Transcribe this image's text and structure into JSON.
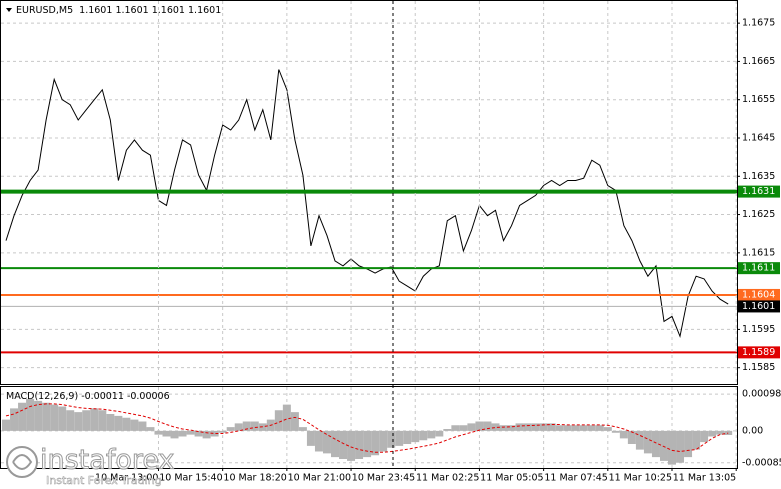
{
  "chart_data": [
    {
      "type": "line",
      "symbol": "EURUSD,M5",
      "ohlc": [
        1.1601,
        1.1601,
        1.1601,
        1.1601
      ],
      "ylim": [
        1.1581,
        1.168
      ],
      "xlim": [
        -0.75,
        91.1
      ],
      "yticks": [
        1.1675,
        1.1665,
        1.1655,
        1.1645,
        1.1635,
        1.1625,
        1.1615,
        1.1595,
        1.1585
      ],
      "grid": true,
      "series": [
        {
          "color": "#000000",
          "values": [
            1.16182,
            1.16247,
            1.163,
            1.16339,
            1.16366,
            1.16497,
            1.16603,
            1.1655,
            1.16537,
            1.16497,
            1.16524,
            1.1655,
            1.16576,
            1.16497,
            1.16339,
            1.16418,
            1.16445,
            1.16418,
            1.16405,
            1.16287,
            1.16274,
            1.16366,
            1.16445,
            1.16432,
            1.16353,
            1.16313,
            1.16405,
            1.16484,
            1.16471,
            1.16497,
            1.1655,
            1.16471,
            1.16524,
            1.16445,
            1.16629,
            1.16576,
            1.16445,
            1.16353,
            1.16168,
            1.16247,
            1.16195,
            1.16129,
            1.16116,
            1.16134,
            1.16116,
            1.16108,
            1.16097,
            1.16108,
            1.16113,
            1.16076,
            1.16063,
            1.1605,
            1.16089,
            1.16108,
            1.16116,
            1.16234,
            1.16247,
            1.16155,
            1.16208,
            1.16274,
            1.16247,
            1.16261,
            1.16182,
            1.16221,
            1.16274,
            1.16287,
            1.163,
            1.16326,
            1.16339,
            1.16326,
            1.16339,
            1.16339,
            1.16345,
            1.16392,
            1.16379,
            1.16326,
            1.16313,
            1.16221,
            1.16182,
            1.16129,
            1.16089,
            1.16116,
            1.15971,
            1.15984,
            1.15932,
            1.16037,
            1.16089,
            1.16082,
            1.1605,
            1.16029,
            1.16016
          ]
        }
      ],
      "levels": [
        {
          "value": 1.1631,
          "color": "#0a8a0a"
        },
        {
          "value": 1.1611,
          "color": "#0a8a0a"
        },
        {
          "value": 1.1604,
          "color": "#ff6a1f"
        },
        {
          "value": 1.1601,
          "color": "#b0b0b0",
          "label_color": "#000000"
        },
        {
          "value": 1.1589,
          "color": "#e00000"
        }
      ]
    },
    {
      "type": "macd",
      "title": "MACD(12,26,9)",
      "readout": [
        -0.00011,
        -6e-05
      ],
      "ylim": [
        -0.00099,
        0.00117
      ],
      "xlim": [
        -0.75,
        91.1
      ],
      "yticks": [
        0.00098,
        {
          "value": 0,
          "label": "0.00"
        },
        -0.00085
      ],
      "grid": true,
      "xticks": [
        {
          "value": 19,
          "label": "10 Mar 13:00"
        },
        {
          "value": 27,
          "label": "10 Mar 15:40"
        },
        {
          "value": 35,
          "label": "10 Mar 18:20"
        },
        {
          "value": 43,
          "label": "10 Mar 21:00"
        },
        {
          "value": 51,
          "label": "10 Mar 23:45"
        },
        {
          "value": 59,
          "label": "11 Mar 02:25"
        },
        {
          "value": 67,
          "label": "11 Mar 05:05"
        },
        {
          "value": 75,
          "label": "11 Mar 07:45"
        },
        {
          "value": 83,
          "label": "11 Mar 10:25"
        },
        {
          "value": 91,
          "label": "11 Mar 13:05"
        }
      ],
      "series": [
        {
          "type": "bar",
          "color": "#b4b4b4",
          "values": [
            0.0003,
            0.0006,
            0.00075,
            0.00085,
            0.0008,
            0.00075,
            0.0007,
            0.00065,
            0.00055,
            0.0005,
            0.00055,
            0.0006,
            0.00055,
            0.00045,
            0.0004,
            0.00035,
            0.0003,
            0.00025,
            0.0001,
            -0.0001,
            -0.00015,
            -0.0002,
            -0.00015,
            -0.0001,
            -0.00015,
            -0.0002,
            -0.00015,
            -5e-05,
            0.0001,
            0.0002,
            0.00025,
            0.00025,
            0.0002,
            0.0003,
            0.00055,
            0.0007,
            0.0005,
            0.0001,
            -0.0004,
            -0.00055,
            -0.0006,
            -0.0007,
            -0.00075,
            -0.0008,
            -0.00075,
            -0.0007,
            -0.00065,
            -0.00055,
            -0.00045,
            -0.0004,
            -0.00035,
            -0.0003,
            -0.00025,
            -0.0002,
            -0.00015,
            5e-05,
            0.00015,
            0.00015,
            0.0002,
            0.00025,
            0.00025,
            0.0002,
            0.00015,
            0.00015,
            0.0002,
            0.0002,
            0.0002,
            0.0002,
            0.0002,
            0.00015,
            0.00015,
            0.00015,
            0.00015,
            0.00015,
            0.00015,
            0.0001,
            -5e-05,
            -0.0002,
            -0.00035,
            -0.0005,
            -0.0006,
            -0.0007,
            -0.0008,
            -0.0009,
            -0.00085,
            -0.0007,
            -0.0005,
            -0.0003,
            -0.00015,
            -0.0001,
            -0.00011
          ]
        },
        {
          "type": "line",
          "color": "#e00000",
          "dashed": true,
          "values": [
            0.0004,
            0.00045,
            0.00055,
            0.00065,
            0.0007,
            0.00072,
            0.00072,
            0.0007,
            0.00066,
            0.00062,
            0.0006,
            0.00059,
            0.00058,
            0.00055,
            0.00052,
            0.00048,
            0.00044,
            0.0004,
            0.00034,
            0.00025,
            0.00017,
            0.0001,
            5e-05,
            2e-05,
            -2e-05,
            -5e-05,
            -7e-05,
            -7e-05,
            -4e-05,
            0,
            5e-05,
            9e-05,
            0.00011,
            0.00015,
            0.00023,
            0.00032,
            0.00036,
            0.00031,
            0.00017,
            3e-05,
            -0.0001,
            -0.00022,
            -0.00033,
            -0.00043,
            -0.0005,
            -0.00054,
            -0.00057,
            -0.00057,
            -0.00055,
            -0.00052,
            -0.00049,
            -0.00045,
            -0.00041,
            -0.00037,
            -0.00032,
            -0.00024,
            -0.00016,
            -0.0001,
            -4e-05,
            2e-05,
            6e-05,
            9e-05,
            0.0001,
            0.00011,
            0.00013,
            0.00014,
            0.00015,
            0.00016,
            0.00017,
            0.00017,
            0.00016,
            0.00016,
            0.00016,
            0.00016,
            0.00016,
            0.00015,
            0.00011,
            5e-05,
            -3e-05,
            -0.00012,
            -0.00022,
            -0.00032,
            -0.00042,
            -0.00052,
            -0.00055,
            -0.00052,
            -0.0005,
            -0.00035,
            -0.0002,
            -0.0001,
            -6e-05
          ]
        }
      ]
    }
  ],
  "watermark": {
    "brand": "instaforex",
    "tagline": "Instant Forex Trading"
  }
}
